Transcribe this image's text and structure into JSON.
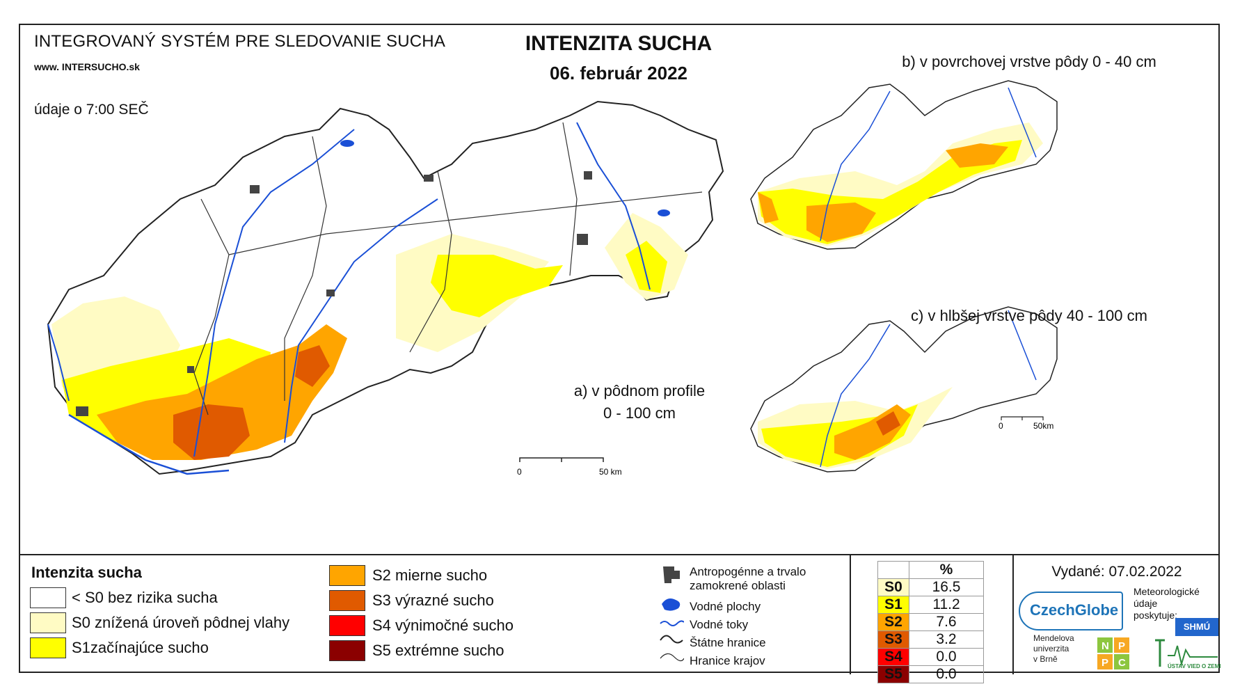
{
  "header": {
    "system_title": "INTEGROVANÝ SYSTÉM PRE SLEDOVANIE SUCHA",
    "url": "www. INTERSUCHO.sk",
    "time_note": "údaje o 7:00 SEČ",
    "main_title": "INTENZITA SUCHA",
    "date": "06. február 2022"
  },
  "maps": {
    "a_label_line1": "a) v pôdnom profile",
    "a_label_line2": "0 - 100 cm",
    "b_label": "b) v povrchovej vrstve pôdy 0 - 40 cm",
    "c_label": "c) v hlbšej vrstve pôdy 40 - 100 cm",
    "scale_main_zero": "0",
    "scale_main_end": "50 km",
    "scale_small_zero": "0",
    "scale_small_end": "50km"
  },
  "legend": {
    "title": "Intenzita sucha",
    "classes": [
      {
        "label": "< S0 bez rizika sucha",
        "color": "#ffffff"
      },
      {
        "label": "S0 znížená úroveň pôdnej vlahy",
        "color": "#fffbc4"
      },
      {
        "label": "S1začínajúce sucho",
        "color": "#ffff00"
      },
      {
        "label": "S2 mierne sucho",
        "color": "#ffa500"
      },
      {
        "label": "S3 výrazné sucho",
        "color": "#e05a00"
      },
      {
        "label": "S4 výnimočné sucho",
        "color": "#ff0000"
      },
      {
        "label": "S5 extrémne sucho",
        "color": "#8b0000"
      }
    ],
    "symbols": [
      {
        "label": "Antropogénne a trvalo zamokrené oblasti",
        "icon": "grey-area-icon"
      },
      {
        "label": "Vodné plochy",
        "icon": "water-body-icon"
      },
      {
        "label": "Vodné toky",
        "icon": "river-icon"
      },
      {
        "label": "Štátne hranice",
        "icon": "state-border-icon"
      },
      {
        "label": "Hranice krajov",
        "icon": "region-border-icon"
      }
    ]
  },
  "percent_table": {
    "header": "%",
    "rows": [
      {
        "code": "S0",
        "value": "16.5",
        "color": "#fffbc4"
      },
      {
        "code": "S1",
        "value": "11.2",
        "color": "#ffff00"
      },
      {
        "code": "S2",
        "value": "7.6",
        "color": "#ffa500"
      },
      {
        "code": "S3",
        "value": "3.2",
        "color": "#e05a00"
      },
      {
        "code": "S4",
        "value": "0.0",
        "color": "#ff0000"
      },
      {
        "code": "S5",
        "value": "0.0",
        "color": "#8b0000"
      }
    ]
  },
  "footer": {
    "issued": "Vydané: 07.02.2022",
    "czechglobe": "CzechGlobe",
    "meteo_line1": "Meteorologické",
    "meteo_line2": "údaje",
    "meteo_line3": "poskytuje:",
    "shmu": "SHMÚ",
    "mendel_line1": "Mendelova",
    "mendel_line2": "univerzita",
    "mendel_line3": "v Brně",
    "nppc_n": "N",
    "nppc_p1": "P",
    "nppc_p2": "P",
    "nppc_c": "C",
    "uvz": "ÚSTAV VIED O ZEMI"
  }
}
